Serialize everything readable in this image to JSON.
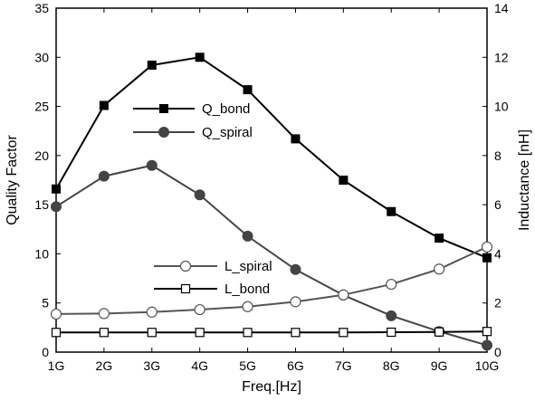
{
  "chart_data": {
    "type": "line",
    "xlabel": "Freq.[Hz]",
    "ylabel_left": "Quality Factor",
    "ylabel_right": "Inductance [nH]",
    "categories": [
      "1G",
      "2G",
      "3G",
      "4G",
      "5G",
      "6G",
      "7G",
      "8G",
      "9G",
      "10G"
    ],
    "y_left_lim": [
      0,
      35
    ],
    "y_right_lim": [
      0,
      14
    ],
    "y_left_ticks": [
      "0",
      "5",
      "10",
      "15",
      "20",
      "25",
      "30",
      "35"
    ],
    "y_right_ticks": [
      "0",
      "2",
      "4",
      "6",
      "8",
      "10",
      "12",
      "14"
    ],
    "grid": false,
    "series": [
      {
        "name": "Q_bond",
        "axis": "left",
        "marker": "filled-square",
        "color": "#000000",
        "values": [
          16.6,
          25.1,
          29.2,
          30.0,
          26.7,
          21.7,
          17.5,
          14.3,
          11.6,
          9.6
        ]
      },
      {
        "name": "Q_spiral",
        "axis": "left",
        "marker": "filled-circle",
        "color": "#444444",
        "values": [
          14.8,
          17.9,
          19.0,
          16.0,
          11.8,
          8.4,
          5.8,
          3.7,
          2.1,
          0.7
        ]
      },
      {
        "name": "L_spiral",
        "axis": "right",
        "marker": "open-circle",
        "color": "#555555",
        "values": [
          1.55,
          1.57,
          1.63,
          1.73,
          1.85,
          2.05,
          2.33,
          2.76,
          3.38,
          4.28
        ]
      },
      {
        "name": "L_bond",
        "axis": "right",
        "marker": "open-square",
        "color": "#000000",
        "values": [
          0.8,
          0.8,
          0.8,
          0.8,
          0.8,
          0.8,
          0.8,
          0.81,
          0.82,
          0.84
        ]
      }
    ]
  }
}
